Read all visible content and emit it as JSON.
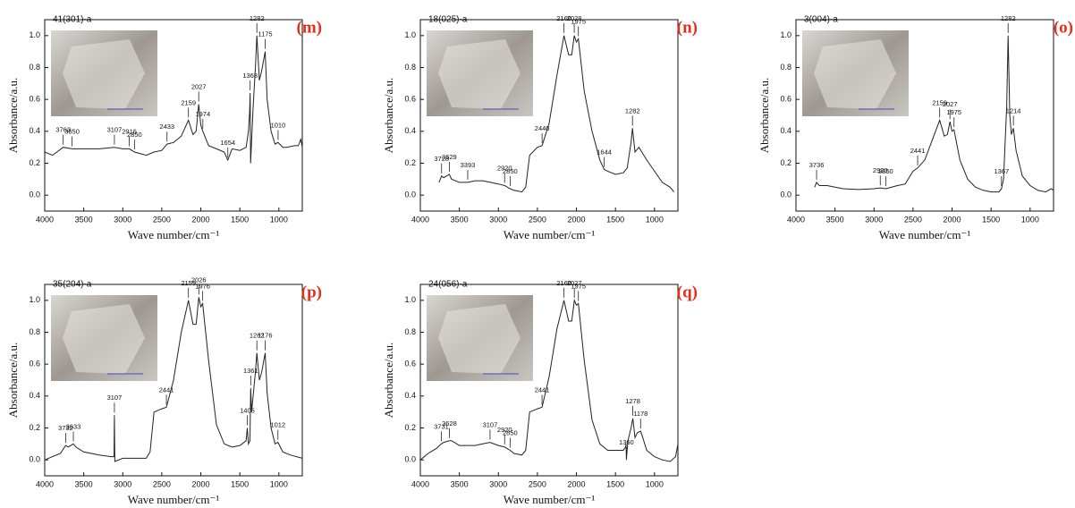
{
  "chart_data": [
    {
      "type": "line",
      "title": "41(301)-a",
      "panel_label": "(m)",
      "label_color": "#e3301c",
      "color": "#222222",
      "xlabel": "Wave number/cm⁻¹",
      "ylabel": "Absorbance/a.u.",
      "xlim": [
        4000,
        700
      ],
      "ylim": [
        -0.1,
        1.1
      ],
      "xticks": [
        4000,
        3500,
        3000,
        2500,
        2000,
        1500,
        1000
      ],
      "yticks": [
        {
          "value": 0,
          "label": "0.0"
        },
        {
          "value": 0.2,
          "label": "0.2"
        },
        {
          "value": 0.4,
          "label": "0.4"
        },
        {
          "value": 0.6,
          "label": "0.6"
        },
        {
          "value": 0.8,
          "label": "0.8"
        },
        {
          "value": 1,
          "label": "1.0"
        }
      ],
      "x": [
        4000,
        3900,
        3763,
        3650,
        3500,
        3300,
        3107,
        3000,
        2916,
        2850,
        2700,
        2600,
        2500,
        2433,
        2350,
        2250,
        2159,
        2100,
        2060,
        2027,
        2000,
        1974,
        1900,
        1800,
        1700,
        1654,
        1600,
        1500,
        1420,
        1390,
        1375,
        1368,
        1362,
        1330,
        1300,
        1282,
        1250,
        1220,
        1175,
        1150,
        1100,
        1050,
        1010,
        950,
        900,
        800,
        750,
        720,
        700
      ],
      "values": [
        0.27,
        0.25,
        0.3,
        0.29,
        0.29,
        0.29,
        0.3,
        0.29,
        0.29,
        0.27,
        0.25,
        0.27,
        0.28,
        0.32,
        0.33,
        0.37,
        0.47,
        0.38,
        0.4,
        0.57,
        0.44,
        0.4,
        0.31,
        0.29,
        0.27,
        0.22,
        0.29,
        0.28,
        0.3,
        0.4,
        0.52,
        0.64,
        0.2,
        0.55,
        0.8,
        1.0,
        0.72,
        0.78,
        0.9,
        0.6,
        0.4,
        0.32,
        0.33,
        0.3,
        0.3,
        0.31,
        0.31,
        0.35,
        0.3
      ],
      "peaks": [
        3763,
        3650,
        3107,
        2916,
        2850,
        2433,
        2159,
        2027,
        1974,
        1654,
        1368,
        1282,
        1175,
        1010
      ]
    },
    {
      "type": "line",
      "title": "18(025)-a",
      "panel_label": "(n)",
      "label_color": "#e3301c",
      "color": "#222222",
      "xlabel": "Wave number/cm⁻¹",
      "ylabel": "Absorbance/a.u.",
      "xlim": [
        4000,
        700
      ],
      "ylim": [
        -0.1,
        1.1
      ],
      "xticks": [
        4000,
        3500,
        3000,
        2500,
        2000,
        1500,
        1000
      ],
      "yticks": [
        {
          "value": 0,
          "label": "0.0"
        },
        {
          "value": 0.2,
          "label": "0.2"
        },
        {
          "value": 0.4,
          "label": "0.4"
        },
        {
          "value": 0.6,
          "label": "0.6"
        },
        {
          "value": 0.8,
          "label": "0.8"
        },
        {
          "value": 1,
          "label": "1.0"
        }
      ],
      "x": [
        3760,
        3728,
        3700,
        3629,
        3600,
        3500,
        3393,
        3300,
        3200,
        3100,
        3000,
        2920,
        2850,
        2800,
        2700,
        2650,
        2600,
        2500,
        2440,
        2350,
        2250,
        2160,
        2100,
        2060,
        2028,
        2000,
        1975,
        1900,
        1800,
        1700,
        1644,
        1600,
        1500,
        1400,
        1350,
        1300,
        1282,
        1250,
        1200,
        1100,
        1000,
        900,
        800,
        750
      ],
      "values": [
        0.08,
        0.12,
        0.11,
        0.13,
        0.1,
        0.08,
        0.08,
        0.09,
        0.09,
        0.08,
        0.07,
        0.06,
        0.04,
        0.03,
        0.02,
        0.05,
        0.25,
        0.3,
        0.31,
        0.45,
        0.75,
        1.0,
        0.88,
        0.88,
        1.0,
        0.96,
        0.98,
        0.65,
        0.4,
        0.22,
        0.16,
        0.15,
        0.13,
        0.14,
        0.17,
        0.33,
        0.42,
        0.27,
        0.3,
        0.22,
        0.15,
        0.08,
        0.05,
        0.02
      ],
      "peaks": [
        3728,
        3629,
        3393,
        2920,
        2850,
        2440,
        2160,
        2028,
        1975,
        1644,
        1282
      ]
    },
    {
      "type": "line",
      "title": "3(004)-a",
      "panel_label": "(o)",
      "label_color": "#e3301c",
      "color": "#222222",
      "xlabel": "Wave number/cm⁻¹",
      "ylabel": "Absorbance/a.u.",
      "xlim": [
        4000,
        700
      ],
      "ylim": [
        -0.1,
        1.1
      ],
      "xticks": [
        4000,
        3500,
        3000,
        2500,
        2000,
        1500,
        1000
      ],
      "yticks": [
        {
          "value": 0,
          "label": "0.0"
        },
        {
          "value": 0.2,
          "label": "0.2"
        },
        {
          "value": 0.4,
          "label": "0.4"
        },
        {
          "value": 0.6,
          "label": "0.6"
        },
        {
          "value": 0.8,
          "label": "0.8"
        },
        {
          "value": 1,
          "label": "1.0"
        }
      ],
      "x": [
        3760,
        3736,
        3700,
        3600,
        3400,
        3200,
        3000,
        2920,
        2850,
        2700,
        2600,
        2500,
        2441,
        2350,
        2250,
        2159,
        2100,
        2060,
        2027,
        2000,
        1975,
        1900,
        1800,
        1700,
        1600,
        1500,
        1400,
        1367,
        1340,
        1300,
        1282,
        1260,
        1240,
        1214,
        1180,
        1100,
        1000,
        900,
        800,
        730,
        700
      ],
      "values": [
        0.05,
        0.08,
        0.06,
        0.06,
        0.04,
        0.035,
        0.04,
        0.045,
        0.04,
        0.06,
        0.07,
        0.15,
        0.17,
        0.22,
        0.35,
        0.47,
        0.37,
        0.38,
        0.46,
        0.4,
        0.41,
        0.22,
        0.1,
        0.05,
        0.03,
        0.02,
        0.02,
        0.04,
        0.1,
        0.55,
        1.0,
        0.5,
        0.38,
        0.42,
        0.28,
        0.12,
        0.06,
        0.03,
        0.02,
        0.04,
        0.03
      ],
      "peaks": [
        3736,
        2920,
        2850,
        2441,
        2159,
        2027,
        1975,
        1367,
        1282,
        1214
      ]
    },
    {
      "type": "line",
      "title": "35(204)-a",
      "panel_label": "(p)",
      "label_color": "#e3301c",
      "color": "#222222",
      "xlabel": "Wave number/cm⁻¹",
      "ylabel": "Absorbance/a.u.",
      "xlim": [
        4000,
        700
      ],
      "ylim": [
        -0.1,
        1.1
      ],
      "xticks": [
        4000,
        3500,
        3000,
        2500,
        2000,
        1500,
        1000
      ],
      "yticks": [
        {
          "value": 0,
          "label": "0.0"
        },
        {
          "value": 0.2,
          "label": "0.2"
        },
        {
          "value": 0.4,
          "label": "0.4"
        },
        {
          "value": 0.6,
          "label": "0.6"
        },
        {
          "value": 0.8,
          "label": "0.8"
        },
        {
          "value": 1,
          "label": "1.0"
        }
      ],
      "x": [
        4000,
        3900,
        3800,
        3732,
        3700,
        3633,
        3600,
        3500,
        3300,
        3150,
        3112,
        3107,
        3102,
        3000,
        2800,
        2700,
        2650,
        2600,
        2500,
        2441,
        2350,
        2250,
        2159,
        2100,
        2060,
        2026,
        2000,
        1976,
        1900,
        1800,
        1700,
        1600,
        1500,
        1420,
        1405,
        1390,
        1370,
        1361,
        1350,
        1300,
        1282,
        1250,
        1220,
        1176,
        1150,
        1100,
        1050,
        1012,
        950,
        850,
        700
      ],
      "values": [
        0.0,
        0.02,
        0.04,
        0.09,
        0.08,
        0.1,
        0.08,
        0.05,
        0.03,
        0.02,
        0.02,
        0.28,
        -0.01,
        0.01,
        0.01,
        0.01,
        0.05,
        0.3,
        0.32,
        0.33,
        0.5,
        0.8,
        1.0,
        0.85,
        0.85,
        1.02,
        0.96,
        0.98,
        0.62,
        0.22,
        0.1,
        0.08,
        0.09,
        0.12,
        0.2,
        0.1,
        0.12,
        0.45,
        0.3,
        0.55,
        0.67,
        0.5,
        0.55,
        0.67,
        0.42,
        0.2,
        0.1,
        0.11,
        0.05,
        0.03,
        0.01
      ],
      "peaks": [
        3732,
        3633,
        3107,
        2441,
        2159,
        2026,
        1976,
        1405,
        1361,
        1282,
        1176,
        1012
      ]
    },
    {
      "type": "line",
      "title": "24(056)-a",
      "panel_label": "(q)",
      "label_color": "#e3301c",
      "color": "#222222",
      "xlabel": "Wave number/cm⁻¹",
      "ylabel": "Absorbance/a.u.",
      "xlim": [
        4000,
        700
      ],
      "ylim": [
        -0.1,
        1.1
      ],
      "xticks": [
        4000,
        3500,
        3000,
        2500,
        2000,
        1500,
        1000
      ],
      "yticks": [
        {
          "value": 0,
          "label": "0.0"
        },
        {
          "value": 0.2,
          "label": "0.2"
        },
        {
          "value": 0.4,
          "label": "0.4"
        },
        {
          "value": 0.6,
          "label": "0.6"
        },
        {
          "value": 0.8,
          "label": "0.8"
        },
        {
          "value": 1,
          "label": "1.0"
        }
      ],
      "x": [
        4000,
        3900,
        3800,
        3731,
        3700,
        3628,
        3600,
        3500,
        3300,
        3200,
        3107,
        3000,
        2920,
        2850,
        2800,
        2700,
        2650,
        2600,
        2500,
        2441,
        2350,
        2250,
        2160,
        2100,
        2060,
        2027,
        2000,
        1975,
        1900,
        1800,
        1700,
        1600,
        1500,
        1400,
        1370,
        1365,
        1360,
        1340,
        1300,
        1278,
        1250,
        1220,
        1178,
        1150,
        1100,
        1000,
        900,
        800,
        730,
        700
      ],
      "values": [
        0.0,
        0.04,
        0.07,
        0.1,
        0.11,
        0.12,
        0.12,
        0.09,
        0.09,
        0.1,
        0.11,
        0.09,
        0.08,
        0.06,
        0.04,
        0.03,
        0.06,
        0.3,
        0.32,
        0.33,
        0.52,
        0.82,
        1.0,
        0.87,
        0.87,
        1.0,
        0.97,
        0.98,
        0.62,
        0.25,
        0.1,
        0.06,
        0.06,
        0.06,
        0.08,
        0.1,
        0.0,
        0.12,
        0.2,
        0.26,
        0.14,
        0.17,
        0.18,
        0.14,
        0.06,
        0.02,
        0.0,
        -0.01,
        0.02,
        0.1
      ],
      "peaks": [
        3731,
        3628,
        3107,
        2920,
        2850,
        2441,
        2160,
        2027,
        1975,
        1360,
        1278,
        1178
      ]
    }
  ]
}
